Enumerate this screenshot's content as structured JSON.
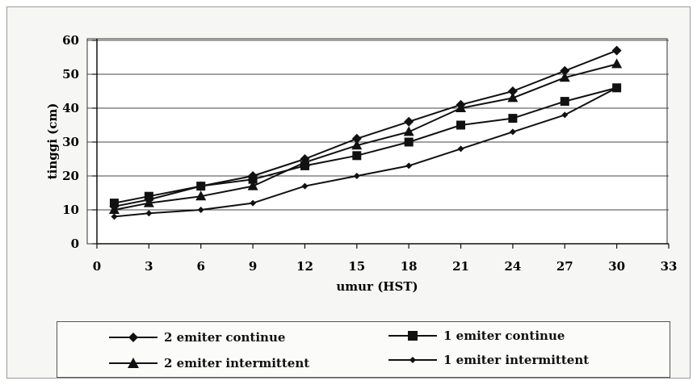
{
  "chart_data": {
    "type": "line",
    "xlabel": "umur (HST)",
    "ylabel": "tinggi (cm)",
    "xlim": [
      0,
      33
    ],
    "ylim": [
      0,
      60
    ],
    "xticks": [
      0,
      3,
      6,
      9,
      12,
      15,
      18,
      21,
      24,
      27,
      30,
      33
    ],
    "yticks": [
      0,
      10,
      20,
      30,
      40,
      50,
      60
    ],
    "grid": "horizontal",
    "legend_position": "bottom",
    "series": [
      {
        "name": "2 emiter continue",
        "marker": "diamond",
        "x": [
          1,
          3,
          6,
          9,
          12,
          15,
          18,
          21,
          24,
          27,
          30
        ],
        "y": [
          11,
          13,
          17,
          20,
          25,
          31,
          36,
          41,
          45,
          51,
          57
        ]
      },
      {
        "name": "1 emiter continue",
        "marker": "square",
        "x": [
          1,
          3,
          6,
          9,
          12,
          15,
          18,
          21,
          24,
          27,
          30
        ],
        "y": [
          12,
          14,
          17,
          19,
          23,
          26,
          30,
          35,
          37,
          42,
          46
        ]
      },
      {
        "name": "2 emiter intermittent",
        "marker": "triangle",
        "x": [
          1,
          3,
          6,
          9,
          12,
          15,
          18,
          21,
          24,
          27,
          30
        ],
        "y": [
          10,
          12,
          14,
          17,
          24,
          29,
          33,
          40,
          43,
          49,
          53
        ]
      },
      {
        "name": "1 emiter intermittent",
        "marker": "small-diamond",
        "x": [
          1,
          3,
          6,
          9,
          12,
          15,
          18,
          21,
          24,
          27,
          30
        ],
        "y": [
          8,
          9,
          10,
          12,
          17,
          20,
          23,
          28,
          33,
          38,
          46
        ]
      }
    ]
  }
}
